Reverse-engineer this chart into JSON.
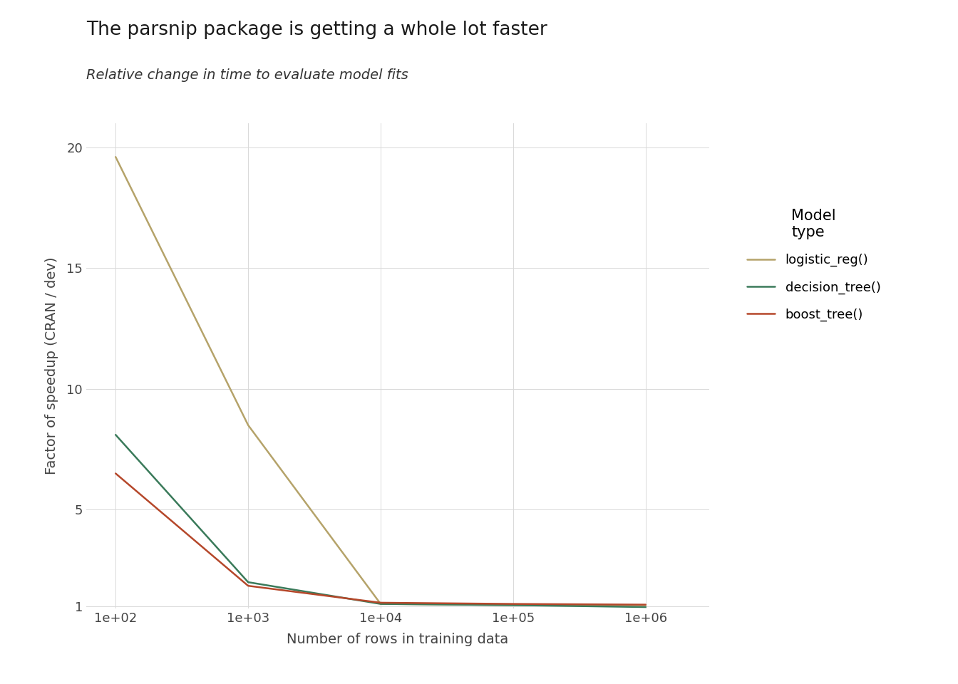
{
  "title": "The parsnip package is getting a whole lot faster",
  "subtitle": "Relative change in time to evaluate model fits",
  "xlabel": "Number of rows in training data",
  "ylabel": "Factor of speedup (CRAN / dev)",
  "x_values": [
    100,
    1000,
    10000,
    100000,
    1000000
  ],
  "logistic_reg": [
    19.6,
    8.5,
    1.1,
    1.05,
    1.05
  ],
  "decision_tree": [
    8.1,
    2.0,
    1.1,
    1.05,
    0.97
  ],
  "boost_tree": [
    6.5,
    1.85,
    1.15,
    1.1,
    1.07
  ],
  "color_logistic": "#b5a36a",
  "color_decision": "#3a7a5a",
  "color_boost": "#b5472a",
  "legend_title": "Model\ntype",
  "legend_labels": [
    "logistic_reg()",
    "decision_tree()",
    "boost_tree()"
  ],
  "ylim": [
    0.9,
    21
  ],
  "yticks": [
    1,
    5,
    10,
    15,
    20
  ],
  "background_color": "#ffffff",
  "panel_background": "#ffffff",
  "grid_color": "#d9d9d9",
  "line_width": 1.8
}
